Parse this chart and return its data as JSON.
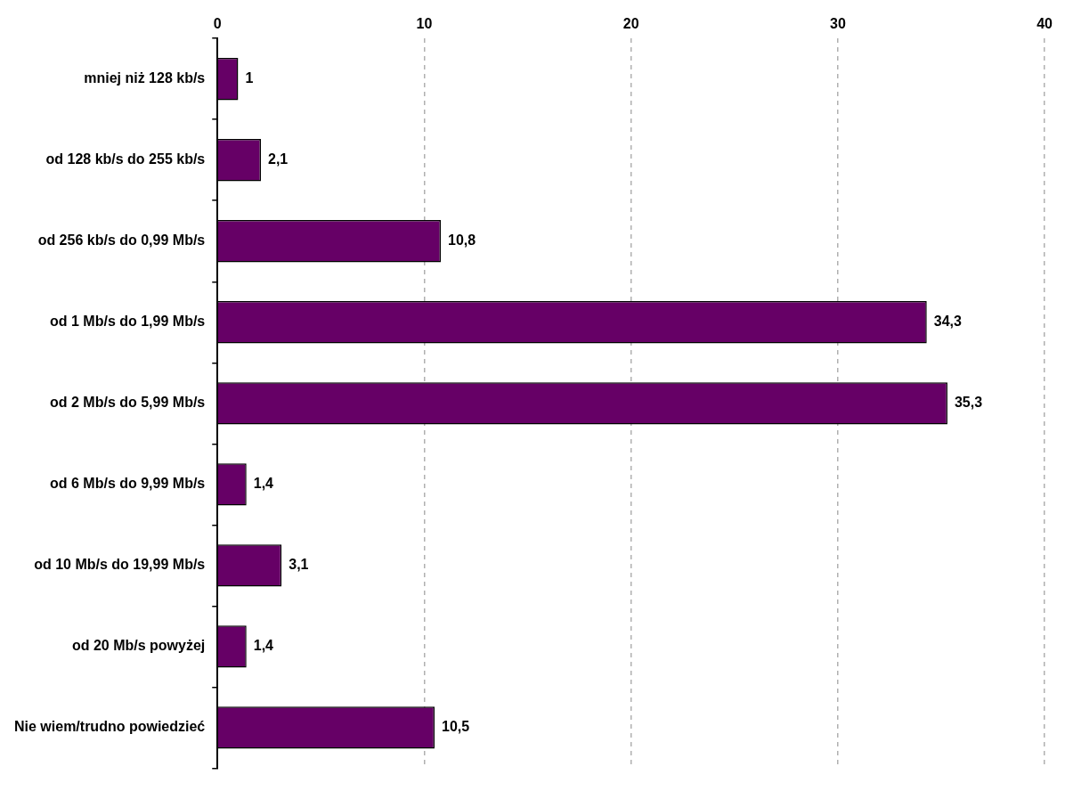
{
  "chart_data": {
    "type": "bar",
    "orientation": "horizontal",
    "categories": [
      "mniej niż 128 kb/s",
      "od 128 kb/s do 255 kb/s",
      "od 256 kb/s do 0,99 Mb/s",
      "od 1 Mb/s do 1,99 Mb/s",
      "od 2 Mb/s do 5,99 Mb/s",
      "od 6 Mb/s do 9,99 Mb/s",
      "od 10 Mb/s do 19,99 Mb/s",
      "od 20 Mb/s powyżej",
      "Nie wiem/trudno powiedzieć"
    ],
    "values": [
      1,
      2.1,
      10.8,
      34.3,
      35.3,
      1.4,
      3.1,
      1.4,
      10.5
    ],
    "value_labels": [
      "1",
      "2,1",
      "10,8",
      "34,3",
      "35,3",
      "1,4",
      "3,1",
      "1,4",
      "10,5"
    ],
    "color": "#660066",
    "xlim": [
      0,
      40
    ],
    "xticks": [
      0,
      10,
      20,
      30,
      40
    ],
    "grid": "x",
    "legend": false
  }
}
